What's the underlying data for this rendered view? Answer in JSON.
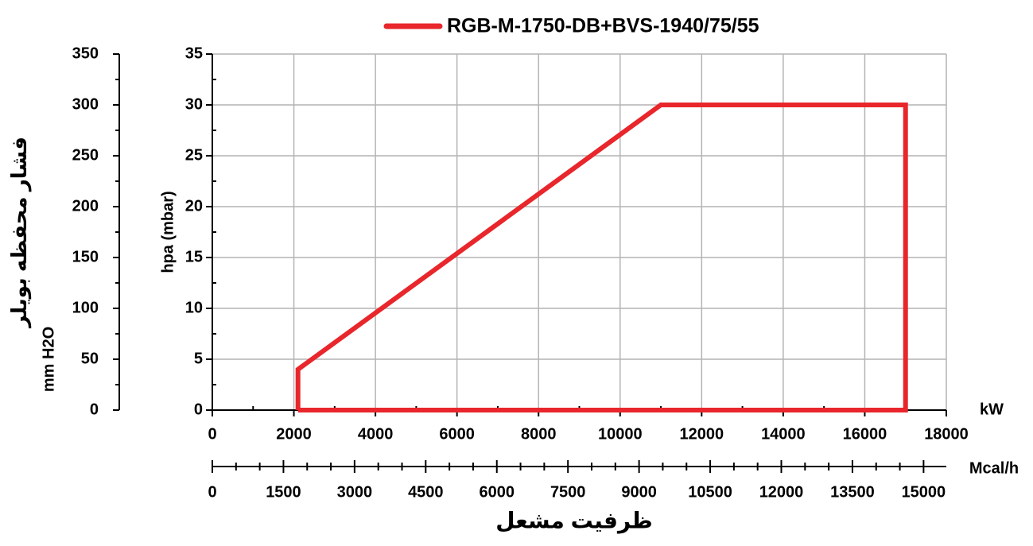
{
  "chart_data": {
    "type": "line",
    "x_unit_label": "kW",
    "x2_unit_label": "Mcal/h",
    "x2_title": "ظرفیت مشعل",
    "y_title": "hpa (mbar)",
    "y2_title": "فشار محفظه بویلر",
    "y2_unit_label": "mm H2O",
    "xlim": [
      0,
      18000
    ],
    "xticks": [
      0,
      2000,
      4000,
      6000,
      8000,
      10000,
      12000,
      14000,
      16000,
      18000
    ],
    "x2lim": [
      0,
      15480
    ],
    "x2ticks": [
      0,
      1500,
      3000,
      4500,
      6000,
      7500,
      9000,
      10500,
      12000,
      13500,
      15000
    ],
    "ylim": [
      0,
      35
    ],
    "yticks": [
      0,
      5,
      10,
      15,
      20,
      25,
      30,
      35
    ],
    "y2lim": [
      0,
      350
    ],
    "y2ticks": [
      0,
      50,
      100,
      150,
      200,
      250,
      300,
      350
    ],
    "grid": true,
    "legend": "top",
    "series": [
      {
        "name": "RGB-M-1750-DB+BVS-1940/75/55",
        "color": "#e8262b",
        "x": [
          2100,
          2100,
          11000,
          17000,
          17000,
          2100
        ],
        "values": [
          0,
          4,
          30,
          30,
          0,
          0
        ]
      }
    ]
  }
}
